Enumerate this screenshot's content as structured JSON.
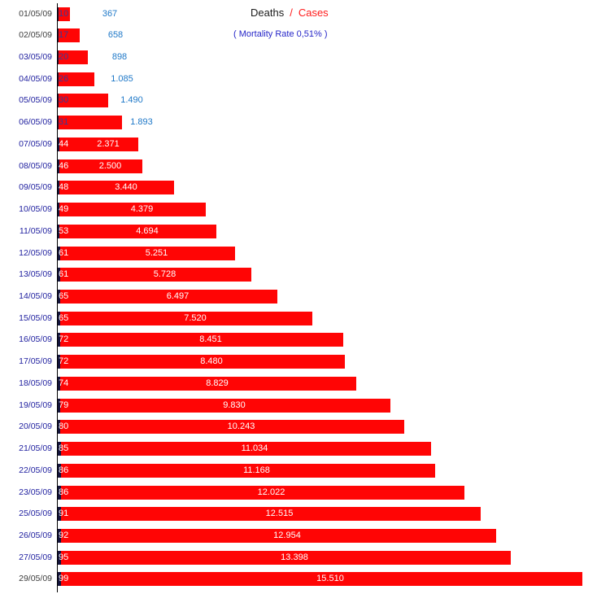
{
  "legend": {
    "deaths_label": "Deaths",
    "separator": "/",
    "cases_label": "Cases",
    "mortality_note": "( Mortality Rate 0,51% )"
  },
  "colors": {
    "cases_bar": "#ff0505",
    "deaths_bar": "#14143c",
    "date_label": "#2222a0",
    "date_label_dark": "#3d3d3d",
    "outside_case_label": "#1e78c8",
    "inside_case_label": "#ffffff",
    "deaths_label_on_bar": "#ffffff",
    "deaths_label_overlap": "#3a3a96",
    "legend_deaths": "#1a1a1a",
    "legend_cases": "#ff1a1a",
    "mortality_note": "#2626c8",
    "axis": "#000000"
  },
  "chart_data": {
    "type": "bar",
    "orientation": "horizontal",
    "title": "Deaths / Cases",
    "subtitle": "( Mortality Rate 0,51% )",
    "categories": [
      "01/05/09",
      "02/05/09",
      "03/05/09",
      "04/05/09",
      "05/05/09",
      "06/05/09",
      "07/05/09",
      "08/05/09",
      "09/05/09",
      "10/05/09",
      "11/05/09",
      "12/05/09",
      "13/05/09",
      "14/05/09",
      "15/05/09",
      "16/05/09",
      "17/05/09",
      "18/05/09",
      "19/05/09",
      "20/05/09",
      "21/05/09",
      "22/05/09",
      "23/05/09",
      "25/05/09",
      "26/05/09",
      "27/05/09",
      "29/05/09"
    ],
    "series": [
      {
        "name": "Deaths",
        "values": [
          10,
          17,
          20,
          26,
          30,
          31,
          44,
          46,
          48,
          49,
          53,
          61,
          61,
          65,
          65,
          72,
          72,
          74,
          79,
          80,
          85,
          86,
          86,
          91,
          92,
          95,
          99
        ]
      },
      {
        "name": "Cases",
        "values": [
          367,
          658,
          898,
          1085,
          1490,
          1893,
          2371,
          2500,
          3440,
          4379,
          4694,
          5251,
          5728,
          6497,
          7520,
          8451,
          8480,
          8829,
          9830,
          10243,
          11034,
          11168,
          12022,
          12515,
          12954,
          13398,
          15510
        ],
        "labels": [
          "367",
          "658",
          "898",
          "1.085",
          "1.490",
          "1.893",
          "2.371",
          "2.500",
          "3.440",
          "4.379",
          "4.694",
          "5.251",
          "5.728",
          "6.497",
          "7.520",
          "8.451",
          "8.480",
          "8.829",
          "9.830",
          "10.243",
          "11.034",
          "11.168",
          "12.022",
          "12.515",
          "12.954",
          "13.398",
          "15.510"
        ]
      }
    ],
    "xlim": [
      0,
      15510
    ],
    "grid": false,
    "legend_position": "top-right",
    "dark_date_indices": [
      0,
      1,
      26
    ],
    "outside_label_count": 6
  }
}
